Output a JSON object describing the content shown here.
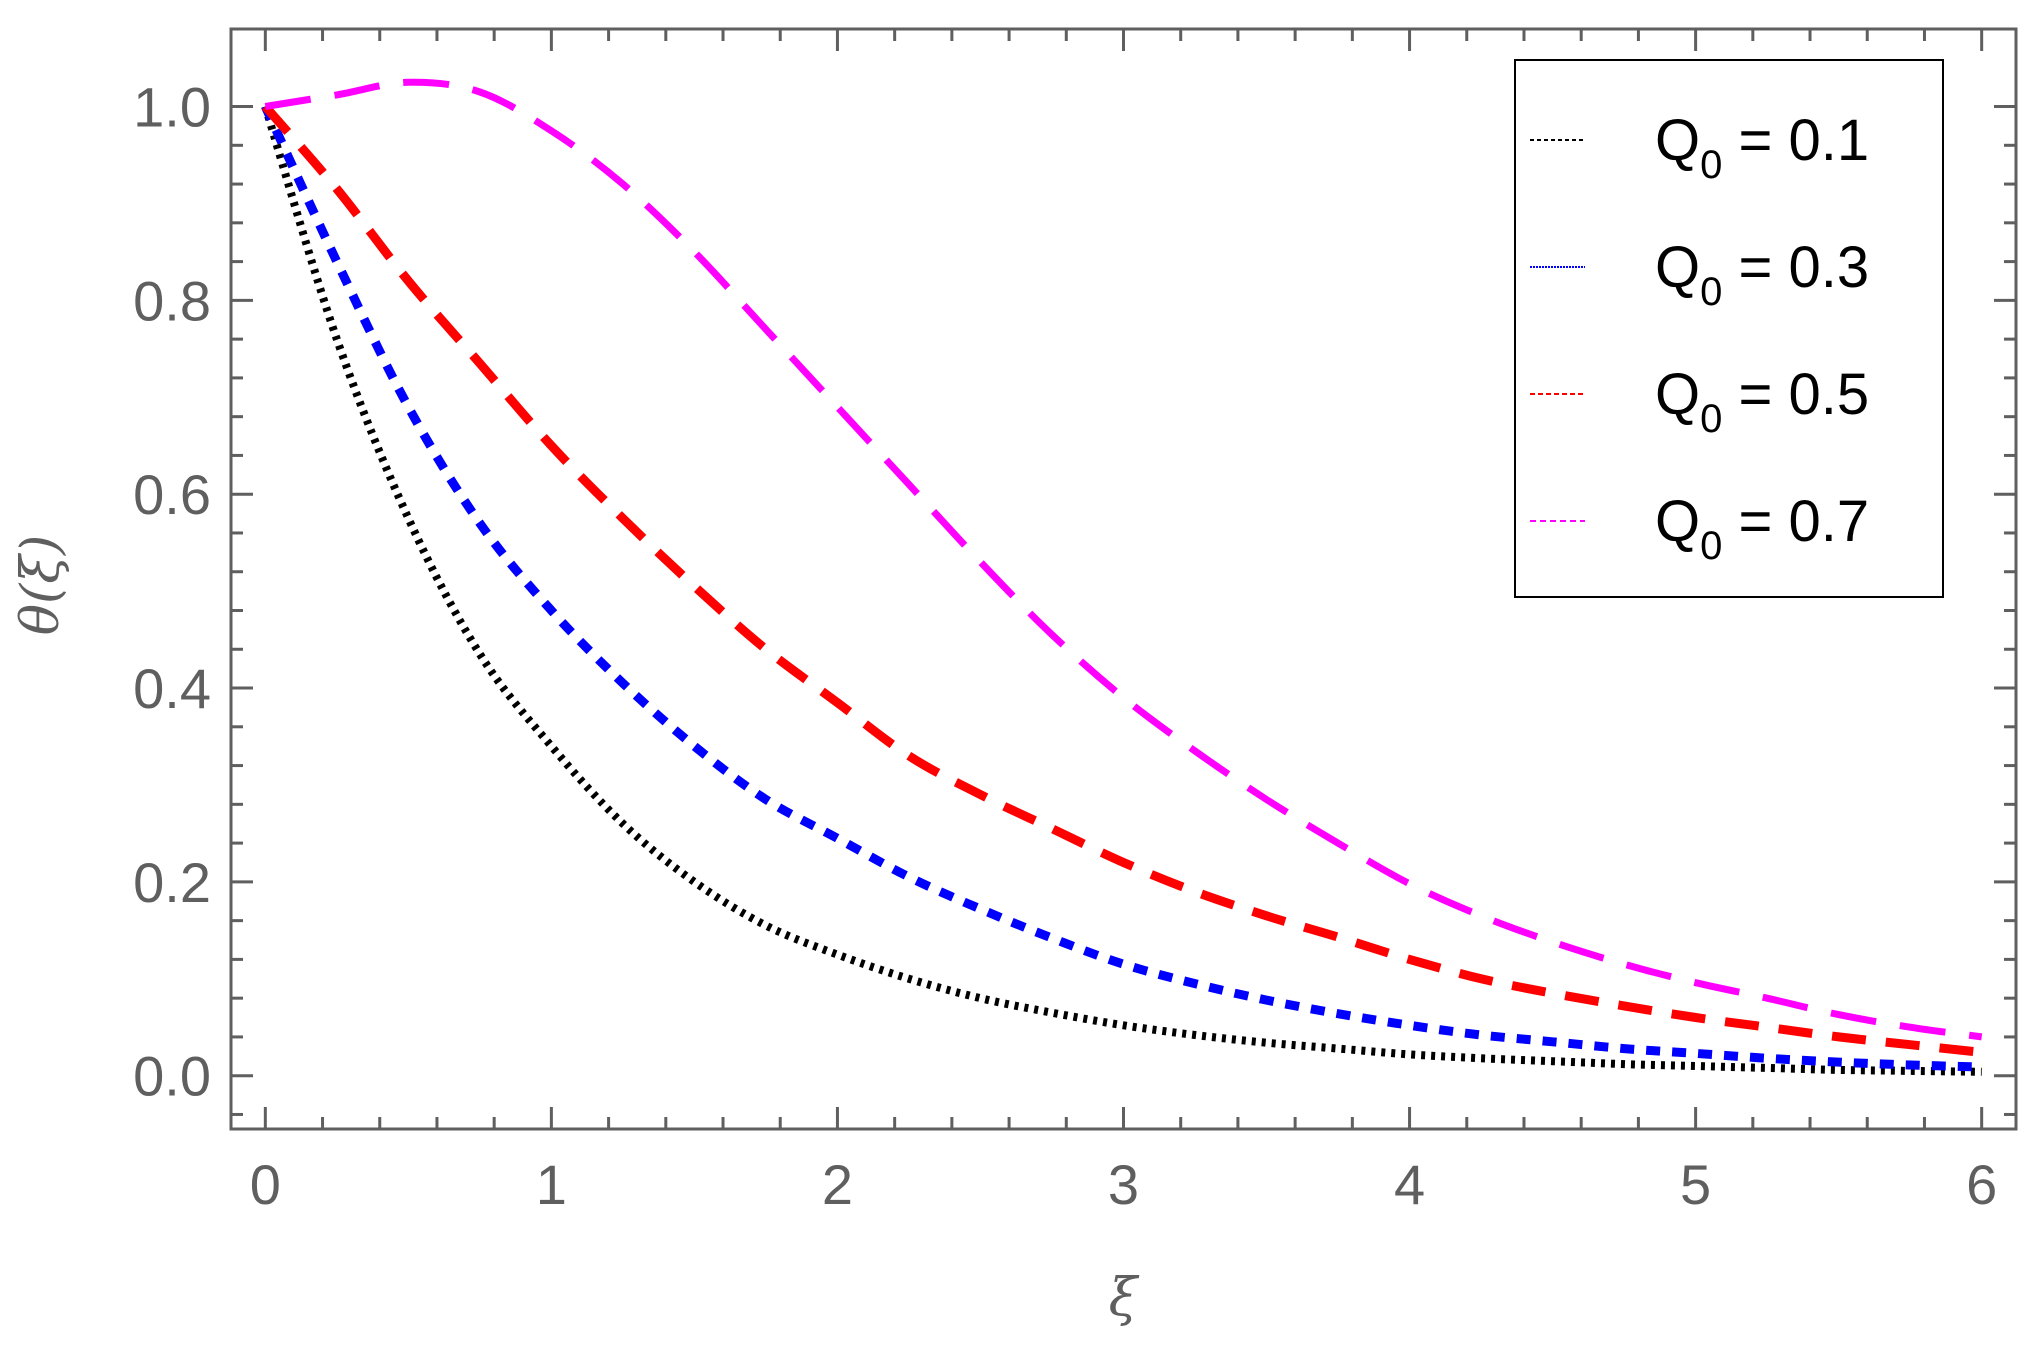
{
  "chart_data": {
    "type": "line",
    "title": "",
    "xlabel": "ξ",
    "ylabel": "θ(ξ)",
    "xlim": [
      -0.12,
      6.12
    ],
    "ylim": [
      -0.055,
      1.08
    ],
    "xticks": [
      "0",
      "1",
      "2",
      "3",
      "4",
      "5",
      "6"
    ],
    "yticks": [
      "0.0",
      "0.2",
      "0.4",
      "0.6",
      "0.8",
      "1.0"
    ],
    "grid": false,
    "legend_position": "top-right",
    "x": [
      0,
      0.25,
      0.5,
      0.75,
      1,
      1.25,
      1.5,
      1.75,
      2,
      2.25,
      2.5,
      2.75,
      3,
      3.25,
      3.5,
      3.75,
      4,
      4.25,
      4.5,
      4.75,
      5,
      5.25,
      5.5,
      5.75,
      6
    ],
    "series": [
      {
        "name": "Q0 = 0.1",
        "label_main": "Q",
        "label_sub": "0",
        "label_rest": " = 0.1",
        "color": "#000000",
        "style": "dotted",
        "values": [
          1.0,
          0.76,
          0.575,
          0.435,
          0.34,
          0.26,
          0.2,
          0.155,
          0.125,
          0.1,
          0.08,
          0.065,
          0.052,
          0.042,
          0.034,
          0.028,
          0.022,
          0.018,
          0.015,
          0.012,
          0.01,
          0.008,
          0.006,
          0.005,
          0.004
        ]
      },
      {
        "name": "Q0 = 0.3",
        "label_main": "Q",
        "label_sub": "0",
        "label_rest": " = 0.3",
        "color": "#0000ff",
        "style": "short-dashed",
        "values": [
          1.0,
          0.84,
          0.69,
          0.57,
          0.48,
          0.405,
          0.34,
          0.285,
          0.245,
          0.205,
          0.172,
          0.142,
          0.115,
          0.095,
          0.078,
          0.064,
          0.052,
          0.042,
          0.035,
          0.028,
          0.023,
          0.018,
          0.014,
          0.011,
          0.009
        ]
      },
      {
        "name": "Q0 = 0.5",
        "label_main": "Q",
        "label_sub": "0",
        "label_rest": " = 0.5",
        "color": "#ff0000",
        "style": "dashed",
        "values": [
          1.0,
          0.915,
          0.82,
          0.735,
          0.65,
          0.575,
          0.505,
          0.44,
          0.385,
          0.33,
          0.29,
          0.255,
          0.22,
          0.19,
          0.165,
          0.143,
          0.12,
          0.1,
          0.085,
          0.072,
          0.06,
          0.05,
          0.04,
          0.032,
          0.024
        ]
      },
      {
        "name": "Q0 = 0.7",
        "label_main": "Q",
        "label_sub": "0",
        "label_rest": " = 0.7",
        "color": "#ff00ff",
        "style": "long-dashed",
        "values": [
          1.0,
          1.012,
          1.025,
          1.015,
          0.975,
          0.92,
          0.85,
          0.77,
          0.69,
          0.61,
          0.53,
          0.455,
          0.39,
          0.335,
          0.285,
          0.24,
          0.198,
          0.165,
          0.138,
          0.115,
          0.096,
          0.08,
          0.063,
          0.05,
          0.04
        ]
      }
    ]
  }
}
